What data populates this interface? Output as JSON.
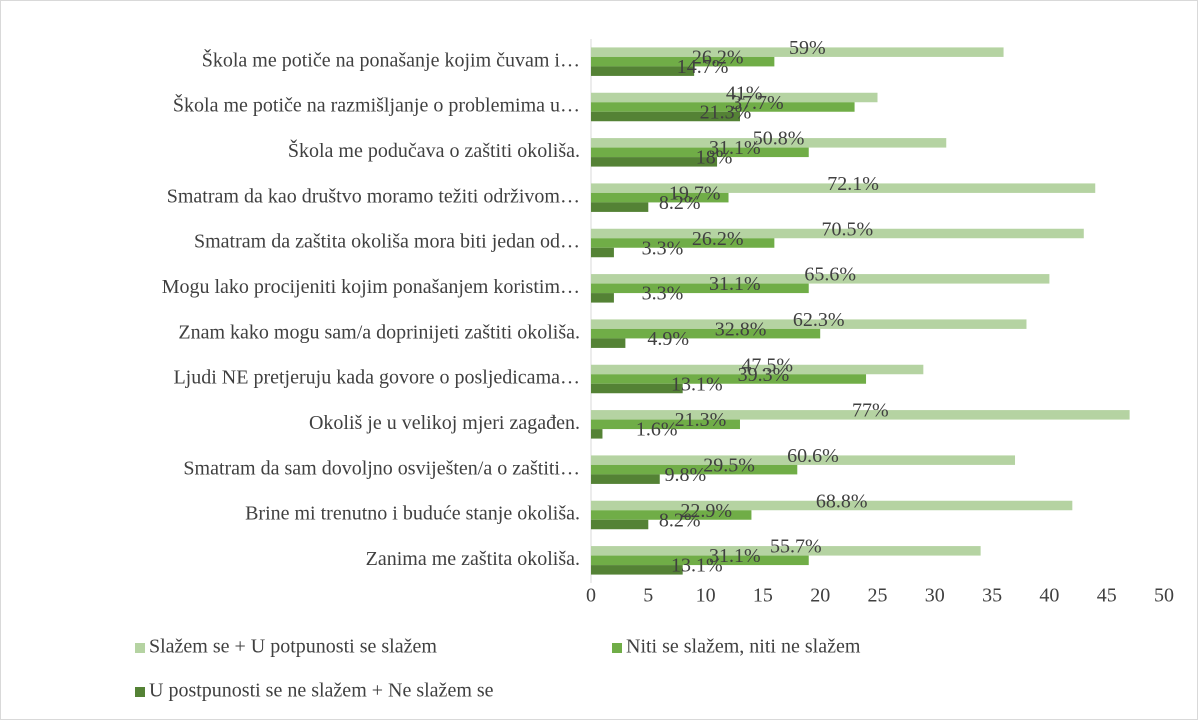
{
  "chart_data": {
    "type": "bar",
    "orientation": "horizontal",
    "categories": [
      "Škola me potiče na ponašanje kojim čuvam i…",
      "Škola me potiče na razmišljanje o problemima u…",
      "Škola me podučava o zaštiti okoliša.",
      "Smatram da kao društvo moramo težiti održivom…",
      "Smatram da zaštita okoliša mora biti jedan od…",
      "Mogu lako procijeniti kojim ponašanjem koristim…",
      "Znam kako mogu sam/a doprinijeti zaštiti okoliša.",
      "Ljudi NE pretjeruju kada govore o posljedicama…",
      "Okoliš je u velikoj mjeri zagađen.",
      "Smatram da sam dovoljno osviješten/a o zaštiti…",
      "Brine mi trenutno i buduće stanje okoliša.",
      "Zanima me zaštita okoliša."
    ],
    "series": [
      {
        "name": "Slažem se + U potpunosti se slažem",
        "color": "#b5d3a2",
        "values": [
          36,
          25,
          31,
          44,
          43,
          40,
          38,
          29,
          47,
          37,
          42,
          34
        ],
        "value_labels": [
          "59%",
          "41%",
          "50.8%",
          "72.1%",
          "70.5%",
          "65.6%",
          "62.3%",
          "47.5%",
          "77%",
          "60.6%",
          "68.8%",
          "55.7%"
        ]
      },
      {
        "name": "Niti se slažem, niti ne slažem",
        "color": "#70ad47",
        "values": [
          16,
          23,
          19,
          12,
          16,
          19,
          20,
          24,
          13,
          18,
          14,
          19
        ],
        "value_labels": [
          "26.2%",
          "37.7%",
          "31.1%",
          "19.7%",
          "26.2%",
          "31.1%",
          "32.8%",
          "39.3%",
          "21.3%",
          "29.5%",
          "22.9%",
          "31.1%"
        ]
      },
      {
        "name": "U postpunosti se ne slažem + Ne slažem se",
        "color": "#548235",
        "values": [
          9,
          13,
          11,
          5,
          2,
          2,
          3,
          8,
          1,
          6,
          5,
          8
        ],
        "value_labels": [
          "14.7%",
          "21.3%",
          "18%",
          "8.2%",
          "3.3%",
          "3.3%",
          "4.9%",
          "13.1%",
          "1.6%",
          "9.8%",
          "8.2%",
          "13.1%"
        ]
      }
    ],
    "xlim": [
      0,
      50
    ],
    "xticks": [
      0,
      5,
      10,
      15,
      20,
      25,
      30,
      35,
      40,
      45,
      50
    ],
    "legend": "bottom"
  }
}
